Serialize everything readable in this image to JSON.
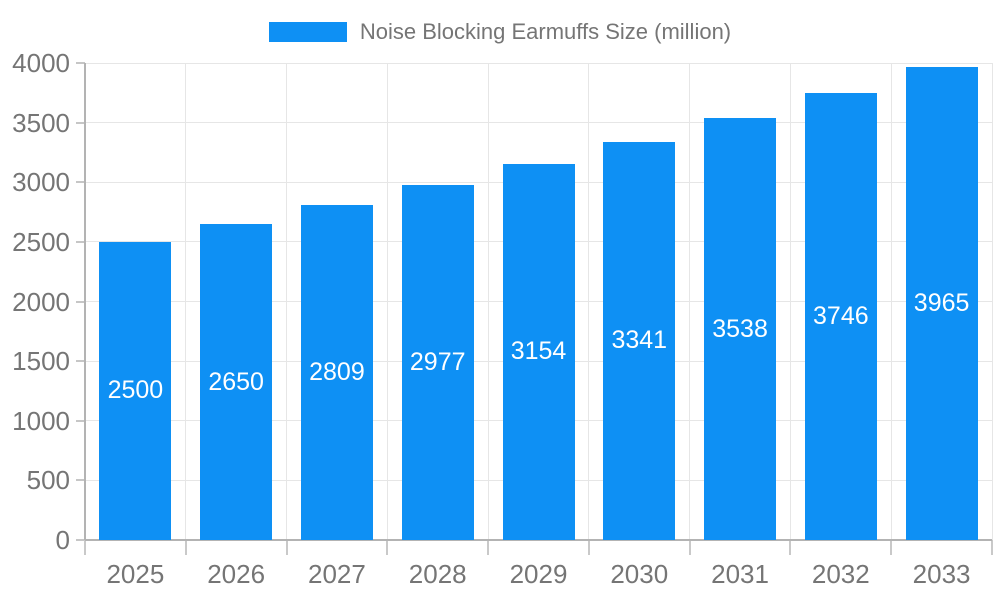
{
  "legend": {
    "series_label": "Noise Blocking Earmuffs Size (million)"
  },
  "chart_data": {
    "type": "bar",
    "title": "Noise Blocking Earmuffs Size (million)",
    "series": [
      {
        "name": "Noise Blocking Earmuffs Size (million)",
        "values": [
          2500,
          2650,
          2809,
          2977,
          3154,
          3341,
          3538,
          3746,
          3965
        ]
      }
    ],
    "categories": [
      "2025",
      "2026",
      "2027",
      "2028",
      "2029",
      "2030",
      "2031",
      "2032",
      "2033"
    ],
    "xlabel": "",
    "ylabel": "",
    "ylim": [
      0,
      4000
    ],
    "yticks": [
      0,
      500,
      1000,
      1500,
      2000,
      2500,
      3000,
      3500,
      4000
    ],
    "grid": true,
    "legend_position": "top-center",
    "bar_labels_shown": true,
    "colors": {
      "bar": "#0e90f4",
      "bar_label": "#ffffff",
      "axis_text": "#757575",
      "gridline": "#e6e6e6",
      "axis_line": "#b3b3b3",
      "background": "#ffffff"
    }
  }
}
